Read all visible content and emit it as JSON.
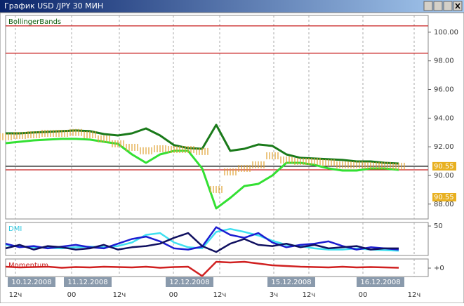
{
  "window": {
    "title": "График USD /JPY  30 МИН"
  },
  "time_axis": {
    "xlim": [
      0,
      60.2
    ],
    "date_labels": [
      {
        "value": 3.7,
        "label": "10.12.2008"
      },
      {
        "value": 11.7,
        "label": "11.12.2008"
      },
      {
        "value": 26.2,
        "label": "12.12.2008"
      },
      {
        "value": 40.7,
        "label": "15.12.2008"
      },
      {
        "value": 53.4,
        "label": "16.12.2008"
      }
    ],
    "xticks": [
      {
        "value": 1.4,
        "label": "12ч"
      },
      {
        "value": 9.4,
        "label": "00"
      },
      {
        "value": 16.2,
        "label": "12ч"
      },
      {
        "value": 23.9,
        "label": "00"
      },
      {
        "value": 30.5,
        "label": "12ч"
      },
      {
        "value": 38.2,
        "label": "3ч"
      },
      {
        "value": 43.2,
        "label": "12ч"
      },
      {
        "value": 50.9,
        "label": "00"
      },
      {
        "value": 58.2,
        "label": "12ч"
      }
    ]
  },
  "chart_data": [
    {
      "type": "line",
      "title": "BollingerBands",
      "title_color": "#106010",
      "x": [
        0,
        2,
        4,
        6,
        8,
        10,
        12,
        14,
        16,
        18,
        20,
        22,
        24,
        26,
        28,
        30,
        32,
        34,
        36,
        38,
        40,
        42,
        44,
        46,
        48,
        50,
        52,
        54,
        56
      ],
      "ylim": [
        86.96,
        101.17
      ],
      "yticks": [
        {
          "value": 88,
          "label": "88.00"
        },
        {
          "value": 90,
          "label": "90.00"
        },
        {
          "value": 92,
          "label": "92.00"
        },
        {
          "value": 94,
          "label": "94.00"
        },
        {
          "value": 96,
          "label": "96.00"
        },
        {
          "value": 98,
          "label": "98.00"
        },
        {
          "value": 100,
          "label": "100.00"
        }
      ],
      "levels": [
        {
          "value": 100.44,
          "color": "#c82020"
        },
        {
          "value": 98.53,
          "color": "#c82020"
        },
        {
          "value": 90.64,
          "color": "#000000"
        },
        {
          "value": 90.39,
          "color": "#c82020"
        }
      ],
      "price_labels": [
        "90.55",
        "90.55"
      ],
      "series": [
        {
          "color": "#1a7a1a",
          "width": 3,
          "values": [
            92.94,
            92.94,
            93.0,
            93.04,
            93.09,
            93.14,
            93.09,
            92.89,
            92.79,
            92.94,
            93.28,
            92.79,
            92.11,
            91.91,
            91.86,
            93.53,
            91.72,
            91.86,
            92.16,
            92.06,
            91.47,
            91.23,
            91.18,
            91.13,
            91.08,
            90.98,
            90.98,
            90.88,
            90.83
          ]
        },
        {
          "color": "#33e033",
          "width": 3,
          "values": [
            92.25,
            92.35,
            92.45,
            92.5,
            92.55,
            92.55,
            92.5,
            92.35,
            92.21,
            91.47,
            90.88,
            91.47,
            91.72,
            91.72,
            90.49,
            87.7,
            88.43,
            89.26,
            89.41,
            90.0,
            90.88,
            90.88,
            90.74,
            90.49,
            90.34,
            90.34,
            90.49,
            90.49,
            90.39
          ]
        },
        {
          "color": "#e0a030",
          "width": 5,
          "dash": true,
          "values": [
            92.7,
            92.79,
            92.84,
            92.94,
            92.94,
            93.0,
            92.84,
            92.55,
            92.21,
            91.96,
            91.72,
            91.86,
            91.81,
            91.81,
            91.67,
            89.02,
            90.25,
            90.49,
            90.74,
            91.37,
            91.08,
            90.98,
            90.98,
            90.88,
            90.74,
            90.74,
            90.69,
            90.69,
            90.64
          ]
        }
      ]
    },
    {
      "type": "line",
      "title": "DMI",
      "title_color": "#30c8e0",
      "x": [
        0,
        2,
        4,
        6,
        8,
        10,
        12,
        14,
        16,
        18,
        20,
        22,
        24,
        26,
        28,
        30,
        32,
        34,
        36,
        38,
        40,
        42,
        44,
        46,
        48,
        50,
        52,
        54,
        56
      ],
      "ylim": [
        0,
        56
      ],
      "yticks": [
        50
      ],
      "series": [
        {
          "color": "#40e0f0",
          "width": 2.5,
          "values": [
            18,
            15,
            14,
            13,
            12,
            14,
            15,
            14,
            16,
            22,
            35,
            38,
            22,
            14,
            12,
            40,
            45,
            40,
            34,
            25,
            18,
            16,
            12,
            10,
            10,
            12,
            10,
            9,
            8
          ]
        },
        {
          "color": "#1c1cd0",
          "width": 2.5,
          "values": [
            20,
            14,
            16,
            12,
            15,
            18,
            14,
            12,
            20,
            28,
            32,
            24,
            12,
            10,
            15,
            48,
            35,
            30,
            38,
            22,
            14,
            18,
            20,
            24,
            16,
            10,
            14,
            12,
            10
          ]
        },
        {
          "color": "#101060",
          "width": 2.5,
          "values": [
            12,
            18,
            10,
            16,
            14,
            10,
            12,
            18,
            10,
            14,
            16,
            20,
            30,
            38,
            16,
            6,
            20,
            28,
            18,
            16,
            20,
            14,
            18,
            12,
            14,
            16,
            10,
            12,
            12
          ]
        }
      ]
    },
    {
      "type": "line",
      "title": "Momentum",
      "title_color": "#c82020",
      "x": [
        0,
        2,
        4,
        6,
        8,
        10,
        12,
        14,
        16,
        18,
        20,
        22,
        24,
        26,
        28,
        30,
        32,
        34,
        36,
        38,
        40,
        42,
        44,
        46,
        48,
        50,
        52,
        54,
        56
      ],
      "ylim": [
        -4.8,
        5.2
      ],
      "yticks": [
        {
          "value": 0,
          "label": "+0"
        }
      ],
      "series": [
        {
          "color": "#d02020",
          "width": 2.5,
          "values": [
            0.8,
            0.4,
            0.6,
            0.8,
            0.2,
            0.6,
            0.4,
            0.8,
            0.6,
            0.4,
            0.8,
            0.2,
            0.6,
            0.8,
            -4.5,
            3.6,
            3.2,
            3.6,
            2.6,
            1.6,
            1.2,
            0.8,
            0.6,
            0.4,
            0.8,
            0.4,
            0.6,
            0.4,
            0.2
          ]
        }
      ]
    }
  ]
}
